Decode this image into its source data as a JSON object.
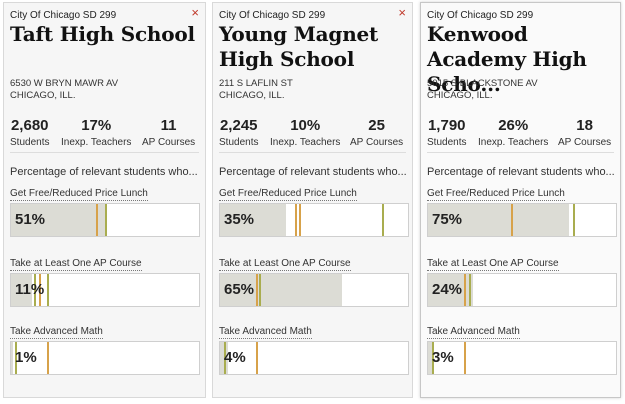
{
  "colors": {
    "fill": "#dcdcd5",
    "orange_marker": "#d7a24a",
    "olive_marker": "#a9ad4f",
    "close_icon": "#c0392b"
  },
  "intro_text": "Percentage of relevant students who...",
  "metric_labels": [
    "Get Free/Reduced Price Lunch",
    "Take at Least One AP Course",
    "Take Advanced Math"
  ],
  "stat_labels": [
    "Students",
    "Inexp. Teachers",
    "AP Courses"
  ],
  "cards": [
    {
      "district": "City Of Chicago SD 299",
      "title": "Taft High School",
      "address1": "6530 W BRYN MAWR AV",
      "address2": "CHICAGO, ILL.",
      "close_icon": "×",
      "stats": [
        "2,680",
        "17%",
        "11"
      ],
      "metrics": [
        {
          "pct": "51%",
          "value": 51,
          "markers": [
            {
              "at": 45,
              "color": "orange"
            },
            {
              "at": 50,
              "color": "olive"
            }
          ]
        },
        {
          "pct": "11%",
          "value": 11,
          "markers": [
            {
              "at": 12,
              "color": "olive"
            },
            {
              "at": 15,
              "color": "orange"
            },
            {
              "at": 19,
              "color": "olive"
            }
          ]
        },
        {
          "pct": "1%",
          "value": 1,
          "markers": [
            {
              "at": 2,
              "color": "olive"
            },
            {
              "at": 19,
              "color": "orange"
            }
          ]
        }
      ]
    },
    {
      "district": "City Of Chicago SD 299",
      "title": "Young Magnet High School",
      "address1": "211 S LAFLIN ST",
      "address2": "CHICAGO, ILL.",
      "close_icon": "×",
      "stats": [
        "2,245",
        "10%",
        "25"
      ],
      "metrics": [
        {
          "pct": "35%",
          "value": 35,
          "markers": [
            {
              "at": 40,
              "color": "orange"
            },
            {
              "at": 42,
              "color": "orange"
            },
            {
              "at": 86,
              "color": "olive"
            }
          ]
        },
        {
          "pct": "65%",
          "value": 65,
          "markers": [
            {
              "at": 19,
              "color": "orange"
            },
            {
              "at": 21,
              "color": "olive"
            }
          ]
        },
        {
          "pct": "4%",
          "value": 4,
          "markers": [
            {
              "at": 2,
              "color": "olive"
            },
            {
              "at": 19,
              "color": "orange"
            }
          ]
        }
      ]
    },
    {
      "district": "City Of Chicago SD 299",
      "title": "Kenwood Academy High Scho...",
      "address1": "5015 S BLACKSTONE AV",
      "address2": "CHICAGO, ILL.",
      "close_icon": "",
      "stats": [
        "1,790",
        "26%",
        "18"
      ],
      "metrics": [
        {
          "pct": "75%",
          "value": 75,
          "markers": [
            {
              "at": 44,
              "color": "orange"
            },
            {
              "at": 77,
              "color": "olive"
            }
          ]
        },
        {
          "pct": "24%",
          "value": 24,
          "markers": [
            {
              "at": 19,
              "color": "orange"
            },
            {
              "at": 22,
              "color": "olive"
            }
          ]
        },
        {
          "pct": "3%",
          "value": 3,
          "markers": [
            {
              "at": 2,
              "color": "olive"
            },
            {
              "at": 19,
              "color": "orange"
            }
          ]
        }
      ]
    }
  ]
}
